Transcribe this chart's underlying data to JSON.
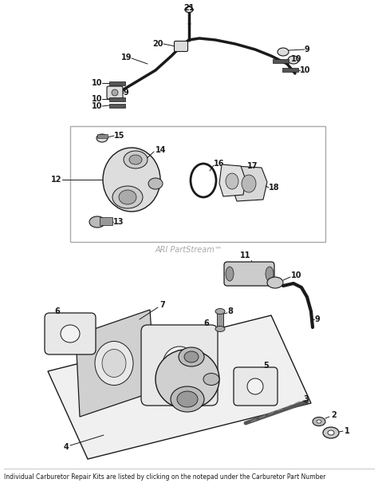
{
  "bg_color": "#ffffff",
  "footer_text": "Individual Carburetor Repair Kits are listed by clicking on the notepad under the Carburetor Part Number",
  "watermark": "ARI PartStream™",
  "fig_width": 4.74,
  "fig_height": 6.05,
  "dpi": 100,
  "col": "#1a1a1a",
  "gray": "#888888",
  "lgray": "#cccccc"
}
